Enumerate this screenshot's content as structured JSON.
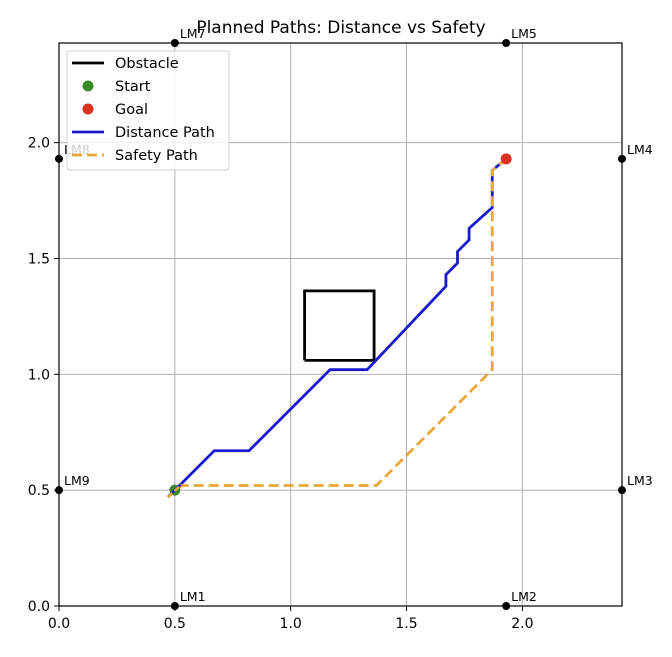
{
  "chart_data": {
    "type": "line",
    "title": "Planned Paths: Distance vs Safety",
    "xlabel": "",
    "ylabel": "",
    "xlim": [
      0,
      2.43
    ],
    "ylim": [
      0,
      2.43
    ],
    "grid": true,
    "aspect": "equal",
    "legend_position": "upper left",
    "x_ticks": [
      0.0,
      0.5,
      1.0,
      1.5,
      2.0
    ],
    "x_tick_labels": [
      "0.0",
      "0.5",
      "1.0",
      "1.5",
      "2.0"
    ],
    "y_ticks": [
      0.0,
      0.5,
      1.0,
      1.5,
      2.0
    ],
    "y_tick_labels": [
      "0.0",
      "0.5",
      "1.0",
      "1.5",
      "2.0"
    ],
    "legend": [
      {
        "label": "Obstacle",
        "kind": "line",
        "color": "#000000"
      },
      {
        "label": "Start",
        "kind": "marker",
        "color": "#3a8a2a"
      },
      {
        "label": "Goal",
        "kind": "marker",
        "color": "#dd3322"
      },
      {
        "label": "Distance Path",
        "kind": "line",
        "color": "#1a1acc"
      },
      {
        "label": "Safety Path",
        "kind": "dashed",
        "color": "#e8a838"
      }
    ],
    "obstacles": [
      {
        "name": "Obstacle",
        "x": [
          1.06,
          1.36,
          1.36,
          1.06,
          1.06
        ],
        "y": [
          1.06,
          1.06,
          1.36,
          1.36,
          1.06
        ],
        "color": "#000000"
      }
    ],
    "start": {
      "label": "Start",
      "x": 0.5,
      "y": 0.5,
      "color": "#3a8a2a"
    },
    "goal": {
      "label": "Goal",
      "x": 1.93,
      "y": 1.93,
      "color": "#dd3322"
    },
    "series": [
      {
        "name": "Distance Path",
        "color": "#1a1acc",
        "style": "solid",
        "x": [
          0.47,
          0.67,
          0.82,
          1.17,
          1.33,
          1.67,
          1.67,
          1.72,
          1.72,
          1.77,
          1.77,
          1.87,
          1.87,
          1.93
        ],
        "y": [
          0.47,
          0.67,
          0.67,
          1.02,
          1.02,
          1.38,
          1.43,
          1.48,
          1.53,
          1.58,
          1.63,
          1.72,
          1.88,
          1.93
        ]
      },
      {
        "name": "Safety Path",
        "color": "#e8a838",
        "style": "dashed",
        "x": [
          0.47,
          0.53,
          1.37,
          1.87,
          1.87,
          1.93
        ],
        "y": [
          0.47,
          0.52,
          0.52,
          1.02,
          1.88,
          1.93
        ]
      }
    ],
    "landmarks": [
      {
        "label": "LM1",
        "x": 0.5,
        "y": 0.0
      },
      {
        "label": "LM2",
        "x": 1.93,
        "y": 0.0
      },
      {
        "label": "LM3",
        "x": 2.43,
        "y": 0.5
      },
      {
        "label": "LM4",
        "x": 2.43,
        "y": 1.93
      },
      {
        "label": "LM5",
        "x": 1.93,
        "y": 2.43
      },
      {
        "label": "LM7",
        "x": 0.5,
        "y": 2.43
      },
      {
        "label": "LM8",
        "x": 0.0,
        "y": 1.93
      },
      {
        "label": "LM9",
        "x": 0.0,
        "y": 0.5
      }
    ]
  }
}
